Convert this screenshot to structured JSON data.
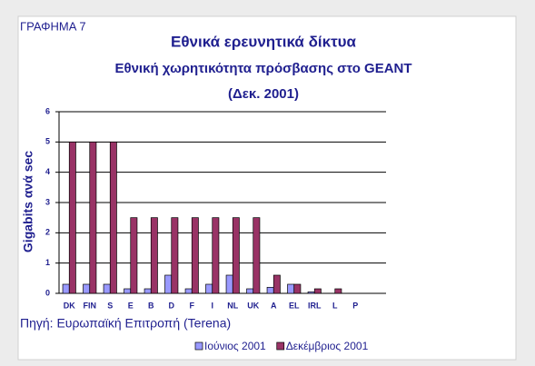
{
  "chart_data": {
    "type": "bar",
    "figure_label": "ΓΡΑΦΗΜΑ 7",
    "title": "Εθνικά ερευνητικά δίκτυα",
    "subtitle": "Εθνική χωρητικότητα πρόσβασης στο GEANT",
    "subtitle_date": "(Δεκ. 2001)",
    "y_label": "Gigabits ανά sec",
    "source": "Πηγή: Ευρωπαϊκή Επιτροπή (Terena)",
    "categories": [
      "DK",
      "FIN",
      "S",
      "E",
      "B",
      "D",
      "F",
      "I",
      "NL",
      "UK",
      "A",
      "EL",
      "IRL",
      "L",
      "P"
    ],
    "series": [
      {
        "name": "Ιούνιος 2001",
        "color": "#9999ff",
        "values": [
          0.3,
          0.3,
          0.3,
          0.15,
          0.15,
          0.6,
          0.15,
          0.3,
          0.6,
          0.15,
          0.2,
          0.3,
          0.05,
          0,
          0
        ]
      },
      {
        "name": "Δεκέμβριος 2001",
        "color": "#993366",
        "values": [
          5,
          5,
          5,
          2.5,
          2.5,
          2.5,
          2.5,
          2.5,
          2.5,
          2.5,
          0.6,
          0.3,
          0.15,
          0.15,
          0
        ]
      }
    ],
    "ylim": [
      0,
      6
    ],
    "yticks": [
      0,
      1,
      2,
      3,
      4,
      5,
      6
    ],
    "grid": true,
    "legend": "bottom"
  }
}
